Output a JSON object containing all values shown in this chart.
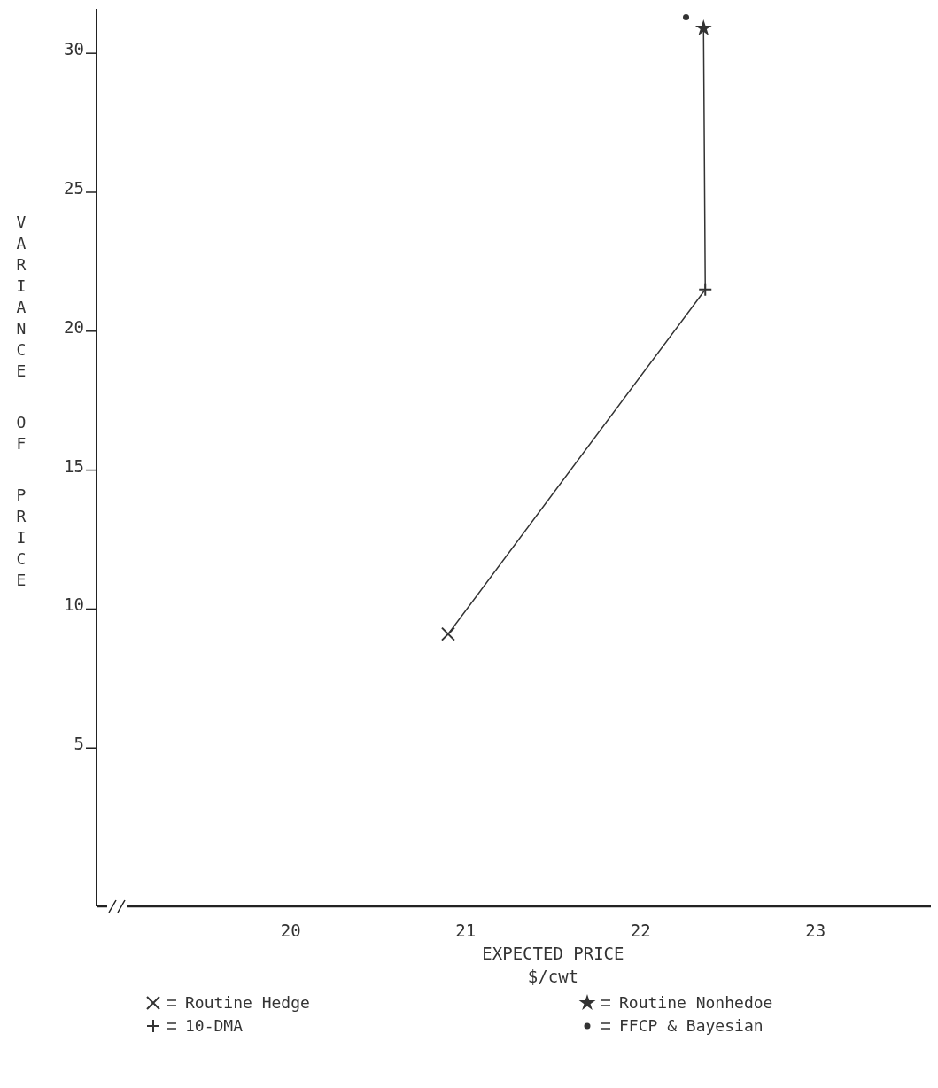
{
  "chart_data": {
    "type": "scatter",
    "xlabel": "EXPECTED PRICE\n$/cwt",
    "ylabel": "VARIANCE OF PRICE",
    "xlim": [
      18.89,
      23.66
    ],
    "xticks": [
      20,
      21,
      22,
      23
    ],
    "ylim": [
      -0.7,
      31.6
    ],
    "yticks": [
      5,
      10,
      15,
      20,
      25,
      30
    ],
    "grid": false,
    "legend": "bottom",
    "series": [
      {
        "type": "line",
        "color": "#333333",
        "x": [
          20.9,
          22.37,
          22.36
        ],
        "values": [
          9.1,
          21.5,
          30.9
        ],
        "marker": "none",
        "line_style": "solid"
      },
      {
        "name": "Routine Hedge",
        "color": "#333333",
        "x": [
          20.9
        ],
        "values": [
          9.1
        ],
        "marker": "cross"
      },
      {
        "name": "10-DMA",
        "color": "#333333",
        "x": [
          22.37
        ],
        "values": [
          21.5
        ],
        "marker": "plus"
      },
      {
        "name": "Routine Nonhedoe",
        "color": "#333333",
        "x": [
          22.36
        ],
        "values": [
          30.9
        ],
        "marker": "star"
      },
      {
        "name": "FFCP & Bayesian",
        "color": "#333333",
        "x": [
          22.26
        ],
        "values": [
          31.3
        ],
        "marker": "circle"
      }
    ]
  }
}
